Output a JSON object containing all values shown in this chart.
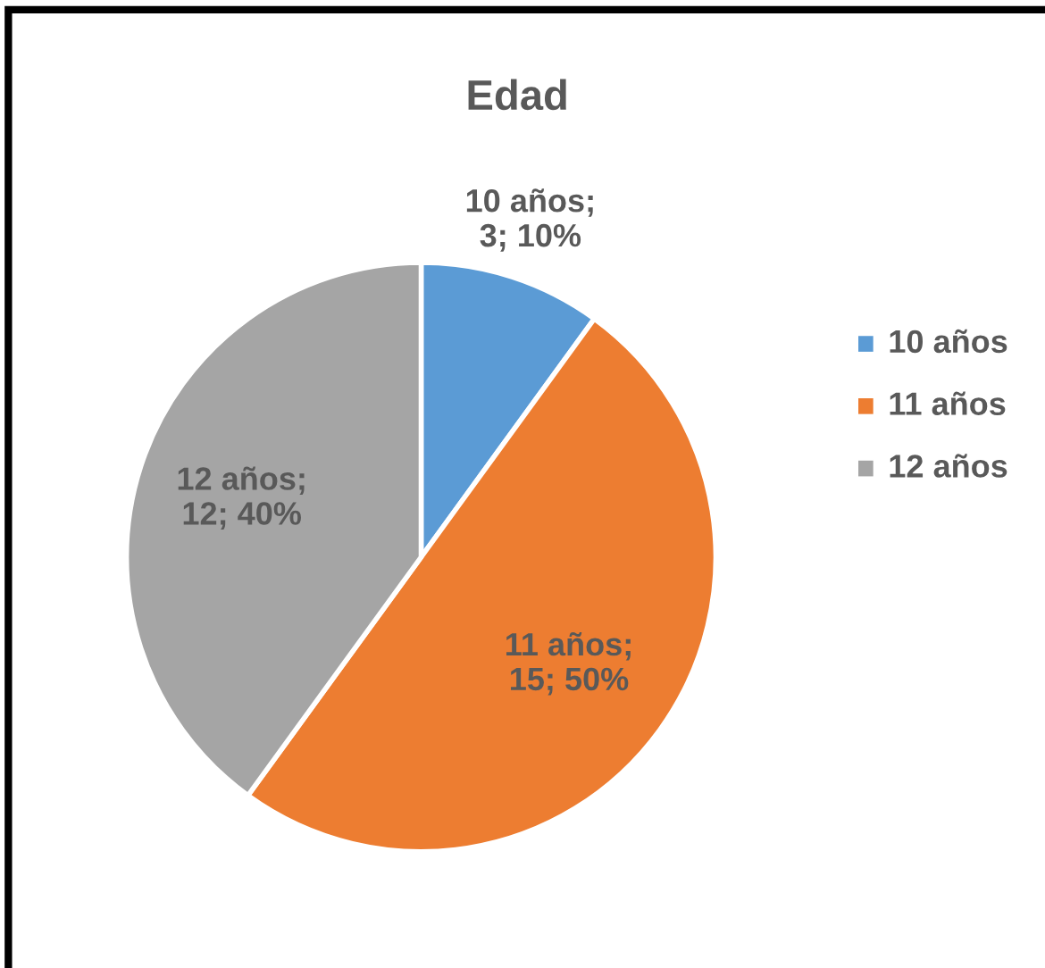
{
  "chart_data": {
    "type": "pie",
    "title": "Edad",
    "categories": [
      "10 años",
      "11 años",
      "12 años"
    ],
    "values": [
      3,
      15,
      12
    ],
    "colors": [
      "#5b9bd5",
      "#ed7d31",
      "#a5a5a5"
    ],
    "value_labels": [
      "10 años;\n3; 10%",
      "11 años;\n15; 50%",
      "12 años;\n12; 40%"
    ],
    "legend": "right"
  }
}
